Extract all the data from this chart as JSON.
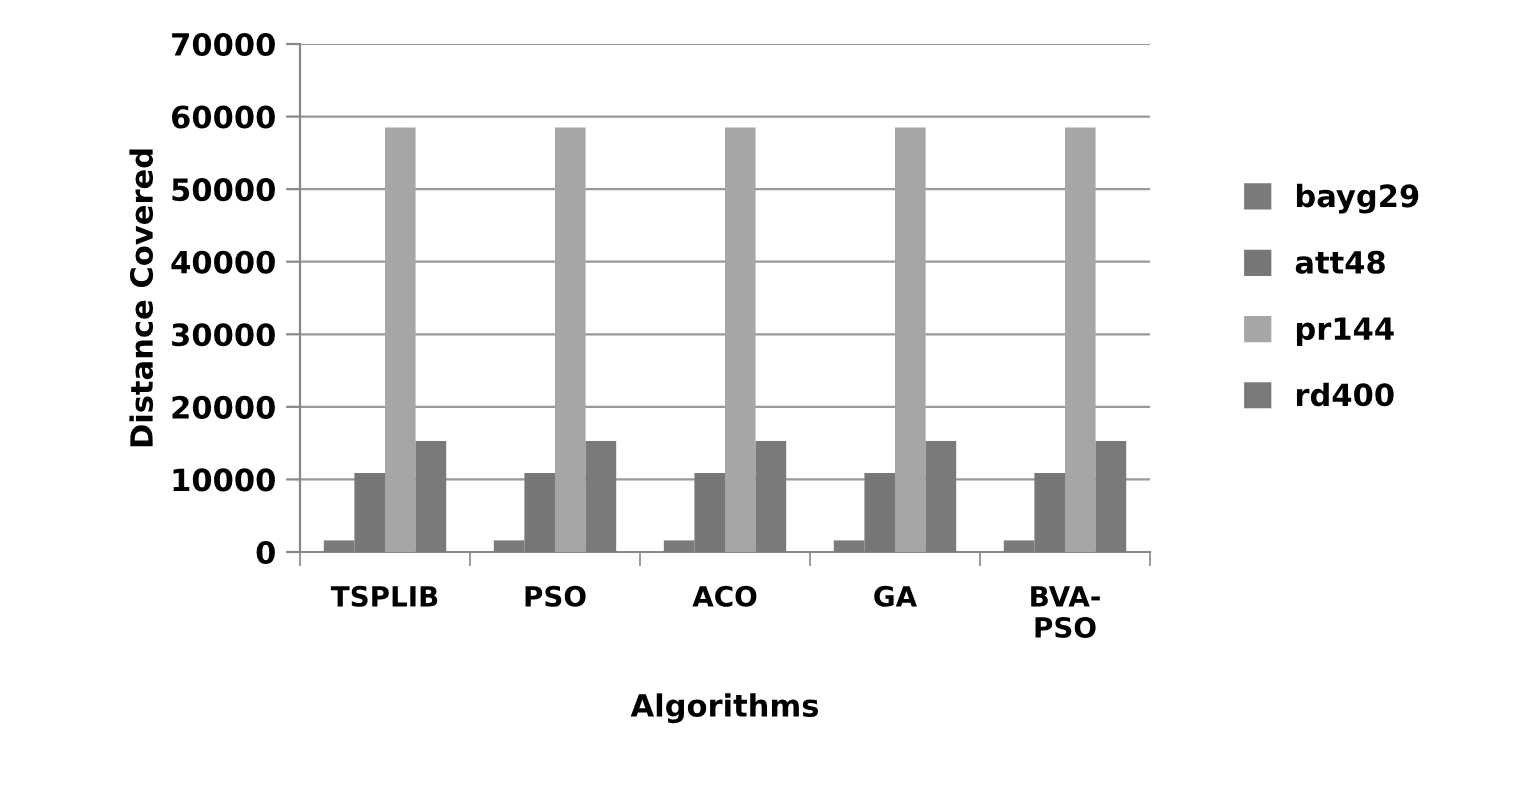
{
  "chart_data": {
    "type": "bar",
    "xlabel": "Algorithms",
    "ylabel": "Distance Covered",
    "categories": [
      "TSPLIB",
      "PSO",
      "ACO",
      "GA",
      "BVA-\nPSO"
    ],
    "series": [
      {
        "name": "bayg29",
        "color": "#7b7b7b",
        "values": [
          1600,
          1600,
          1600,
          1600,
          1600
        ]
      },
      {
        "name": "att48",
        "color": "#777777",
        "values": [
          10900,
          10900,
          10900,
          10900,
          10900
        ]
      },
      {
        "name": "pr144",
        "color": "#a6a6a6",
        "values": [
          58500,
          58500,
          58500,
          58500,
          58500
        ]
      },
      {
        "name": "rd400",
        "color": "#7a7a7a",
        "values": [
          15300,
          15300,
          15300,
          15300,
          15300
        ]
      }
    ],
    "ylim": [
      0,
      70000
    ],
    "yticks": [
      0,
      10000,
      20000,
      30000,
      40000,
      50000,
      60000,
      70000
    ],
    "grid": "y",
    "legend": "right"
  }
}
